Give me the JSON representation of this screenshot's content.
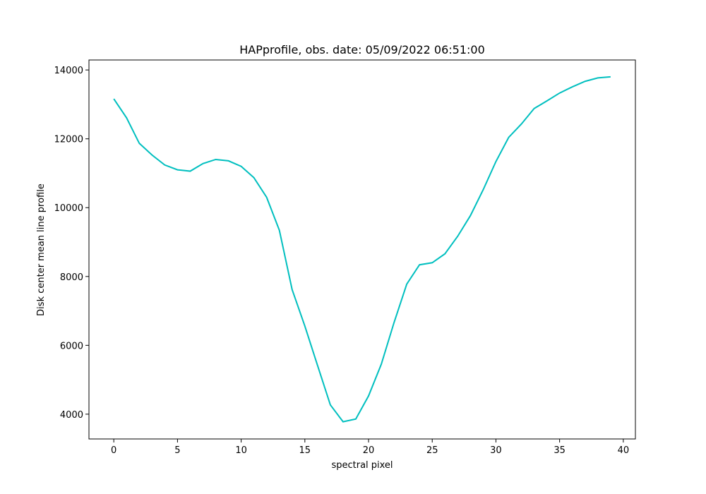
{
  "chart_data": {
    "type": "line",
    "title": "HAPprofile, obs. date: 05/09/2022 06:51:00",
    "x_label": "spectral pixel",
    "y_label": "Disk center mean line profile",
    "x": [
      0,
      1,
      2,
      3,
      4,
      5,
      6,
      7,
      8,
      9,
      10,
      11,
      12,
      13,
      14,
      15,
      16,
      17,
      18,
      19,
      20,
      21,
      22,
      23,
      24,
      25,
      26,
      27,
      28,
      29,
      30,
      31,
      32,
      33,
      34,
      35,
      36,
      37,
      38,
      39
    ],
    "values": [
      13160,
      12610,
      11870,
      11530,
      11240,
      11100,
      11060,
      11280,
      11400,
      11360,
      11200,
      10870,
      10300,
      9340,
      7620,
      6560,
      5410,
      4270,
      3780,
      3860,
      4530,
      5450,
      6660,
      7780,
      8340,
      8400,
      8660,
      9170,
      9770,
      10520,
      11340,
      12040,
      12430,
      12880,
      13100,
      13330,
      13510,
      13670,
      13770,
      13800
    ],
    "color": "#00bfbf",
    "xlim": [
      -1.95,
      40.95
    ],
    "xticks": [
      0,
      5,
      10,
      15,
      20,
      25,
      30,
      35,
      40
    ],
    "ylim": [
      3280,
      14290
    ],
    "yticks": [
      4000,
      6000,
      8000,
      10000,
      12000,
      14000
    ],
    "grid": false
  }
}
